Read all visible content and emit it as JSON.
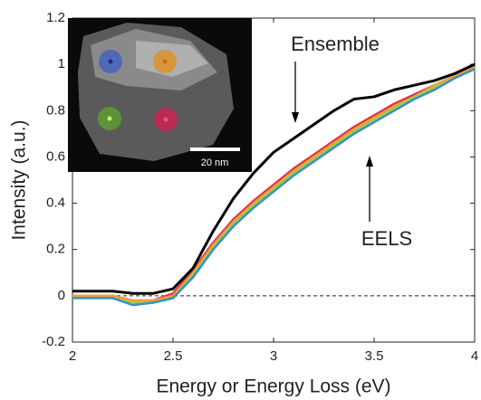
{
  "chart_data": {
    "type": "line",
    "xlabel": "Energy or Energy Loss (eV)",
    "ylabel": "Intensity (a.u.)",
    "xlim": [
      2,
      4
    ],
    "ylim": [
      -0.2,
      1.2
    ],
    "xticks": [
      2,
      2.5,
      3,
      3.5,
      4
    ],
    "yticks": [
      -0.2,
      0,
      0.2,
      0.4,
      0.6,
      0.8,
      1,
      1.2
    ],
    "hline": 0,
    "x": [
      2.0,
      2.1,
      2.2,
      2.3,
      2.4,
      2.5,
      2.6,
      2.7,
      2.8,
      2.9,
      3.0,
      3.1,
      3.2,
      3.3,
      3.4,
      3.5,
      3.6,
      3.7,
      3.8,
      3.9,
      4.0
    ],
    "series": [
      {
        "color": "#e0304a",
        "values": [
          0.0,
          0.0,
          0.0,
          -0.02,
          -0.02,
          0.01,
          0.11,
          0.23,
          0.33,
          0.41,
          0.48,
          0.55,
          0.61,
          0.67,
          0.73,
          0.78,
          0.83,
          0.87,
          0.91,
          0.95,
          0.99
        ]
      },
      {
        "color": "#f0a030",
        "values": [
          0.0,
          0.0,
          0.0,
          -0.02,
          -0.02,
          0.0,
          0.1,
          0.22,
          0.32,
          0.4,
          0.47,
          0.54,
          0.6,
          0.66,
          0.72,
          0.77,
          0.82,
          0.86,
          0.91,
          0.95,
          0.99
        ]
      },
      {
        "color": "#9acd50",
        "values": [
          -0.01,
          -0.01,
          -0.01,
          -0.03,
          -0.03,
          -0.01,
          0.09,
          0.21,
          0.31,
          0.39,
          0.46,
          0.53,
          0.59,
          0.65,
          0.71,
          0.76,
          0.81,
          0.86,
          0.9,
          0.94,
          0.98
        ]
      },
      {
        "color": "#3a8fc8",
        "values": [
          -0.01,
          -0.01,
          -0.01,
          -0.04,
          -0.03,
          -0.01,
          0.08,
          0.2,
          0.3,
          0.38,
          0.45,
          0.52,
          0.58,
          0.64,
          0.7,
          0.75,
          0.8,
          0.85,
          0.89,
          0.94,
          0.98
        ]
      },
      {
        "color": "#000000",
        "values": [
          0.02,
          0.02,
          0.02,
          0.01,
          0.01,
          0.03,
          0.12,
          0.28,
          0.42,
          0.53,
          0.62,
          0.68,
          0.74,
          0.8,
          0.85,
          0.86,
          0.89,
          0.91,
          0.93,
          0.96,
          1.0
        ]
      }
    ],
    "annotations": [
      "Ensemble",
      "EELS"
    ],
    "inset_scale_label": "20 nm"
  }
}
